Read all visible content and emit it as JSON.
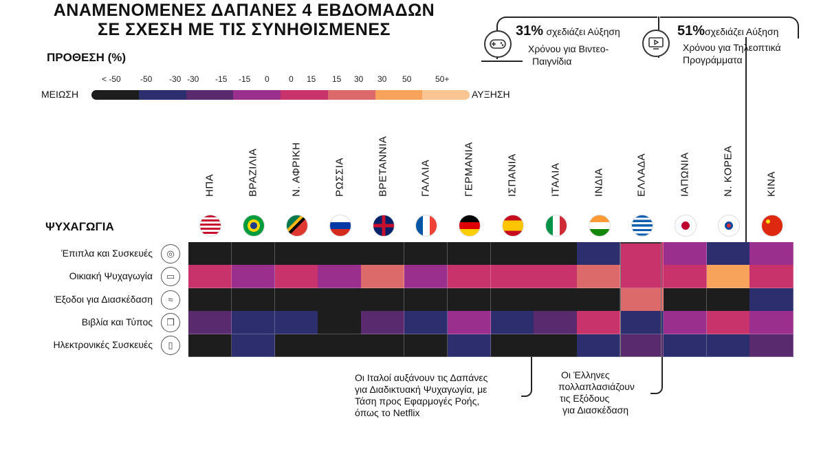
{
  "header": {
    "title_line1": "ΑΝΑΜΕΝΟΜΕΝΕΣ ΔΑΠΑΝΕΣ 4 ΕΒΔΟΜΑΔΩΝ",
    "title_line2": "ΣΕ ΣΧΕΣΗ ΜΕ ΤΙΣ ΣΥΝΗΘΙΣΜΕΝΕΣ"
  },
  "legend": {
    "title": "ΠΡΟΘΕΣΗ (%)",
    "left_end": "ΜΕΙΩΣΗ",
    "right_end": "ΑΥΞΗΣΗ",
    "labels": [
      "< -50",
      "-50",
      "-30",
      "-30",
      "-15",
      "-15",
      "0",
      "0",
      "15",
      "15",
      "30",
      "30",
      "50",
      "50+"
    ],
    "bins": [
      "#1d1d1d",
      "#2c2e6e",
      "#5a2a6f",
      "#9b2f8e",
      "#c9336b",
      "#dc6a6a",
      "#f7a35c",
      "#fbc593"
    ]
  },
  "stats": [
    {
      "number": "31%",
      "text1": "σχεδιάζει Αύξηση",
      "text2": "Χρόνου για Βιντεο-",
      "text3": "Παιγνίδια",
      "icon": "gamepad-icon"
    },
    {
      "number": "51%",
      "text1": "σχεδιάζει Αύξηση",
      "text2": "Χρόνου για Τηλεοπτικά",
      "text3": "Προγράμματα",
      "icon": "tv-screen-icon"
    }
  ],
  "notes": {
    "italy": [
      "Οι Ιταλοί αυξάνουν τις Δαπάνες",
      "για Διαδικτυακή Ψυχαγωγία, με",
      "Τάση προς Εφαρμογές Ροής,",
      "όπως το Netflix"
    ],
    "greece": [
      "Οι Έλληνες",
      "πολλαπλασιάζουν",
      "τις Εξόδους",
      "για Διασκέδαση"
    ]
  },
  "chart_data": {
    "type": "heatmap",
    "title": "ΨΥΧΑΓΩΓΙΑ",
    "countries": [
      "ΗΠΑ",
      "ΒΡΑΖΙΛΙΑ",
      "Ν. ΑΦΡΙΚΗ",
      "ΡΩΣΣΙΑ",
      "ΒΡΕΤΑΝΝΙΑ",
      "ΓΑΛΛΙΑ",
      "ΓΕΡΜΑΝΙΑ",
      "ΙΣΠΑΝΙΑ",
      "ΙΤΑΛΙΑ",
      "ΙΝΔΙΑ",
      "ΕΛΛΑΔΑ",
      "ΙΑΠΩΝΙΑ",
      "Ν. ΚΟΡΕΑ",
      "ΚΙΝΑ"
    ],
    "flags": [
      "us-flag-icon",
      "brazil-flag-icon",
      "south-africa-flag-icon",
      "russia-flag-icon",
      "uk-flag-icon",
      "france-flag-icon",
      "germany-flag-icon",
      "spain-flag-icon",
      "italy-flag-icon",
      "india-flag-icon",
      "greece-flag-icon",
      "japan-flag-icon",
      "south-korea-flag-icon",
      "china-flag-icon"
    ],
    "categories": [
      "Έπιπλα και Συσκευές",
      "Οικιακή Ψυχαγωγία",
      "Έξοδοι για Διασκέδαση",
      "Βιβλία και Τύπος",
      "Ηλεκτρονικές Συσκευές"
    ],
    "category_icons": [
      "appliance-icon",
      "tv-icon",
      "swimming-icon",
      "book-icon",
      "phone-icon"
    ],
    "values_bin_index": [
      [
        0,
        0,
        0,
        0,
        0,
        0,
        0,
        0,
        0,
        1,
        4,
        3,
        1,
        3
      ],
      [
        4,
        3,
        4,
        3,
        5,
        3,
        4,
        4,
        4,
        5,
        4,
        4,
        6,
        4
      ],
      [
        0,
        0,
        0,
        0,
        0,
        0,
        0,
        0,
        0,
        0,
        5,
        0,
        0,
        1
      ],
      [
        2,
        1,
        1,
        0,
        2,
        1,
        3,
        1,
        2,
        4,
        1,
        3,
        4,
        3
      ],
      [
        0,
        1,
        0,
        0,
        0,
        0,
        1,
        0,
        0,
        1,
        2,
        1,
        1,
        2
      ]
    ]
  }
}
